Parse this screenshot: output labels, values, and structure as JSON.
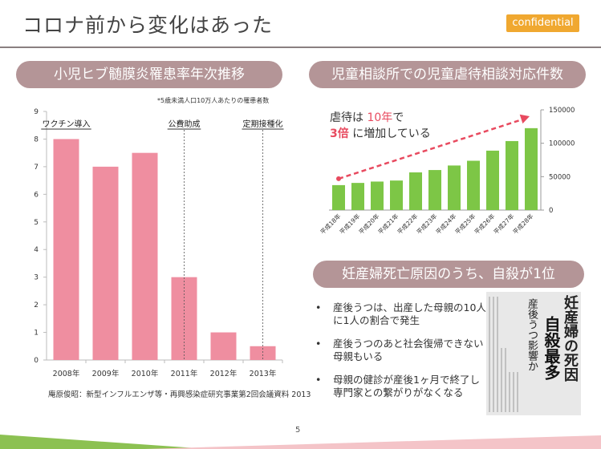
{
  "header": {
    "title": "コロナ前から変化はあった",
    "badge": "confidential"
  },
  "left_panel": {
    "heading": "小児ヒブ髄膜炎罹患率年次推移",
    "note": "*5歳未満人口10万人あたりの罹患者数",
    "source": "庵原俊昭：新型インフルエンザ等・再興感染症研究事業第2回会議資料 2013"
  },
  "right_top_panel": {
    "heading": "児童相談所での児童虐待相談対応件数",
    "callout": {
      "part1": "虐待は ",
      "highlight1": "10年",
      "part2": "で",
      "highlight2": "3倍",
      "part3": " に増加している"
    }
  },
  "right_bottom_panel": {
    "heading": "妊産婦死亡原因のうち、自殺が1位",
    "bullets": [
      "産後うつは、出産した母親の10人に1人の割合で発生",
      "産後うつのあと社会復帰できない母親もいる",
      "母親の健診が産後1ヶ月で終了し専門家との繋がりがなくなる"
    ],
    "bullet_symbol": "•",
    "newspaper": {
      "headline1": "妊産婦の死因",
      "headline2": "自殺最多",
      "subhead": "産後うつ影響か"
    }
  },
  "page_number": "5",
  "colors": {
    "pill": "#b49597",
    "bar_pink": "#ef8ea0",
    "bar_green": "#7dc646",
    "arrow_red": "#e84a5f",
    "highlight_red": "#e84a5f",
    "badge": "#f0a830",
    "footer_green": "#8cc152",
    "footer_pink": "#f4c4c8"
  },
  "chart_data": [
    {
      "type": "bar",
      "categories": [
        "2008年",
        "2009年",
        "2010年",
        "2011年",
        "2012年",
        "2013年"
      ],
      "values": [
        8,
        7,
        7.5,
        3,
        1,
        0.5
      ],
      "ylim": [
        0,
        9
      ],
      "yticks": [
        "0",
        "1",
        "2",
        "3",
        "4",
        "5",
        "6",
        "7",
        "8",
        "9"
      ],
      "grid": false,
      "annotations": [
        {
          "label": "ワクチン導入",
          "category": "2008年"
        },
        {
          "label": "公費助成",
          "category": "2011年"
        },
        {
          "label": "定期接種化",
          "category": "2013年"
        }
      ]
    },
    {
      "type": "bar",
      "categories": [
        "平成18年",
        "平成19年",
        "平成20年",
        "平成21年",
        "平成22年",
        "平成23年",
        "平成24年",
        "平成25年",
        "平成26年",
        "平成27年",
        "平成28年"
      ],
      "values": [
        37323,
        40639,
        42664,
        44211,
        56384,
        59919,
        66701,
        73802,
        88931,
        103286,
        122575
      ],
      "ylim": [
        0,
        150000
      ],
      "yticks": [
        "0",
        "50000",
        "100000",
        "150000"
      ],
      "y_axis_position": "right",
      "grid": false,
      "trend_arrow": true
    }
  ]
}
